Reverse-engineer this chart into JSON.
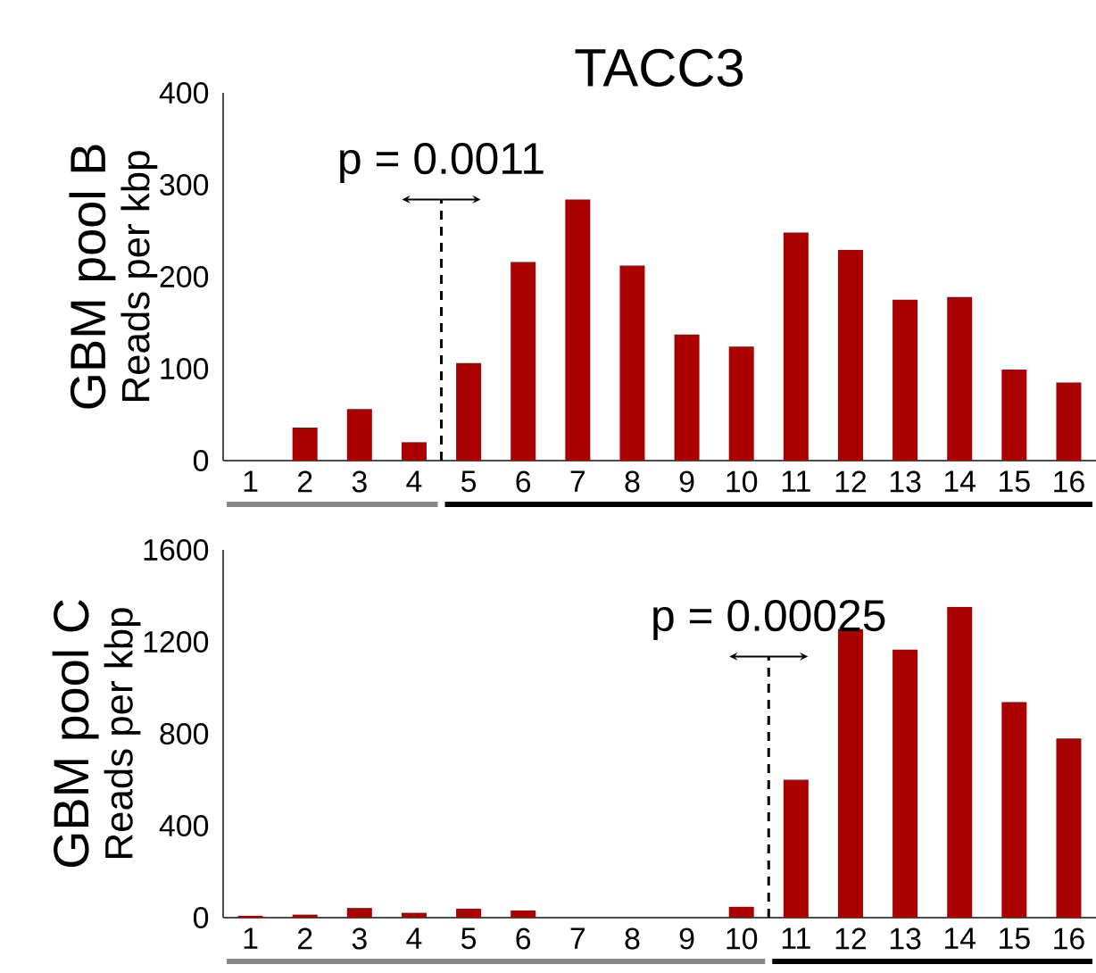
{
  "chart_data": [
    {
      "type": "bar",
      "title": "TACC3",
      "subtitle": "GBM pool B",
      "ylabel": "Reads per kbp",
      "color": "#aa0000",
      "x": [
        1,
        2,
        3,
        4,
        5,
        6,
        7,
        8,
        9,
        10,
        11,
        12,
        13,
        14,
        15,
        16
      ],
      "values": [
        0,
        36,
        56,
        20,
        106,
        216,
        284,
        212,
        137,
        124,
        248,
        229,
        175,
        178,
        99,
        85
      ],
      "xlim": [
        0.5,
        16.5
      ],
      "xticks": [
        1,
        2,
        3,
        4,
        5,
        6,
        7,
        8,
        9,
        10,
        11,
        12,
        13,
        14,
        15,
        16
      ],
      "ylim": [
        0,
        400
      ],
      "yticks": [
        0,
        100,
        200,
        300,
        400
      ],
      "ref_lines": [
        {
          "axis": "x",
          "value": 4.5,
          "line_style": "dashed",
          "color": "#000000"
        }
      ],
      "annotations": [
        "p = 0.0011"
      ]
    },
    {
      "type": "bar",
      "subtitle": "GBM pool C",
      "ylabel": "Reads per kbp",
      "color": "#aa0000",
      "x": [
        1,
        2,
        3,
        4,
        5,
        6,
        7,
        8,
        9,
        10,
        11,
        12,
        13,
        14,
        15,
        16
      ],
      "values": [
        8,
        13,
        42,
        21,
        39,
        31,
        0,
        0,
        0,
        47,
        600,
        1255,
        1166,
        1351,
        938,
        779
      ],
      "xlim": [
        0.5,
        16.5
      ],
      "xticks": [
        1,
        2,
        3,
        4,
        5,
        6,
        7,
        8,
        9,
        10,
        11,
        12,
        13,
        14,
        15,
        16
      ],
      "ylim": [
        0,
        1600
      ],
      "yticks": [
        0,
        400,
        800,
        1200,
        1600
      ],
      "ref_lines": [
        {
          "axis": "x",
          "value": 10.5,
          "line_style": "dashed",
          "color": "#000000"
        }
      ],
      "annotations": [
        "p = 0.00025"
      ]
    }
  ]
}
